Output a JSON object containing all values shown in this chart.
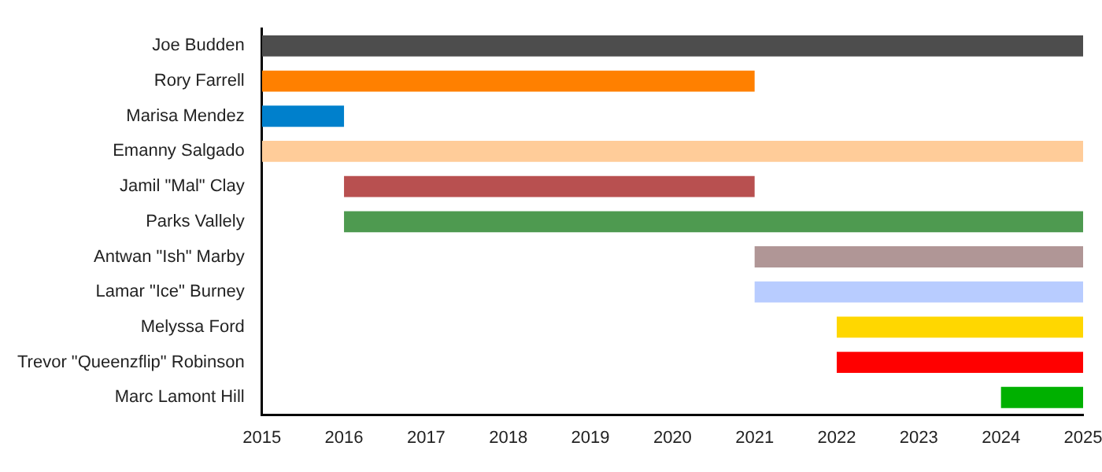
{
  "chart_data": {
    "type": "bar",
    "orientation": "horizontal",
    "categories": [
      "Joe Budden",
      "Rory Farrell",
      "Marisa Mendez",
      "Emanny Salgado",
      "Jamil \"Mal\" Clay",
      "Parks Vallely",
      "Antwan \"Ish\" Marby",
      "Lamar \"Ice\" Burney",
      "Melyssa Ford",
      "Trevor \"Queenzflip\" Robinson",
      "Marc Lamont Hill"
    ],
    "base": [
      2015,
      2015,
      2015,
      2015,
      2016,
      2016,
      2021,
      2021,
      2022,
      2022,
      2024
    ],
    "values": [
      10,
      6,
      1,
      10,
      5,
      9,
      4,
      4,
      3,
      3,
      1
    ],
    "colors": [
      "#4d4d4d",
      "#ff8000",
      "#0080cc",
      "#ffcc99",
      "#b85050",
      "#4e9a50",
      "#b09696",
      "#b8ccff",
      "#ffd700",
      "#ff0000",
      "#00b000"
    ],
    "xlim": [
      2015,
      2025
    ],
    "xticks": [
      2015,
      2016,
      2017,
      2018,
      2019,
      2020,
      2021,
      2022,
      2023,
      2024,
      2025
    ],
    "grid": false,
    "legend": false
  }
}
